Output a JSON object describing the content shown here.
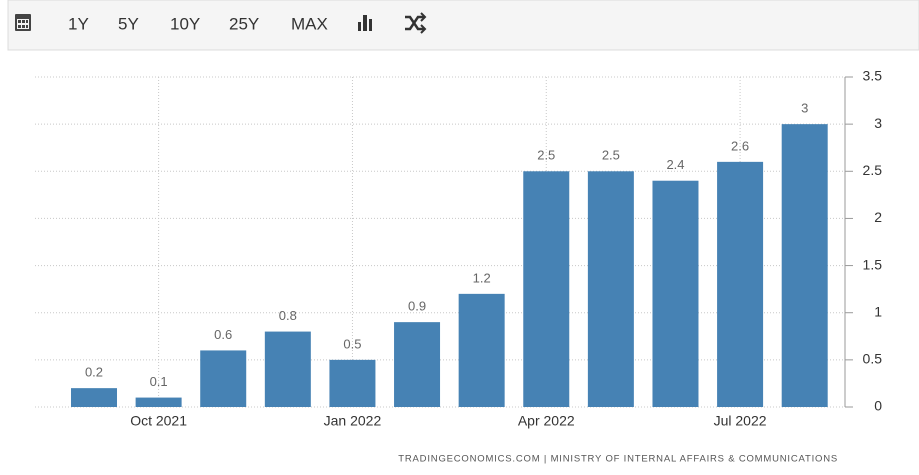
{
  "toolbar": {
    "ranges": [
      "1Y",
      "5Y",
      "10Y",
      "25Y",
      "MAX"
    ]
  },
  "chart_data": {
    "type": "bar",
    "categories": [
      null,
      "Oct 2021",
      null,
      null,
      "Jan 2022",
      null,
      null,
      "Apr 2022",
      null,
      null,
      "Jul 2022",
      null
    ],
    "values": [
      0.2,
      0.1,
      0.6,
      0.8,
      0.5,
      0.9,
      1.2,
      2.5,
      2.5,
      2.4,
      2.6,
      3
    ],
    "color": "#4682b4",
    "ylim": [
      0,
      3.5
    ],
    "yticks": [
      0,
      0.5,
      1,
      1.5,
      2,
      2.5,
      3,
      3.5
    ],
    "grid": true,
    "source": "TRADINGECONOMICS.COM | MINISTRY OF INTERNAL AFFAIRS & COMMUNICATIONS"
  }
}
